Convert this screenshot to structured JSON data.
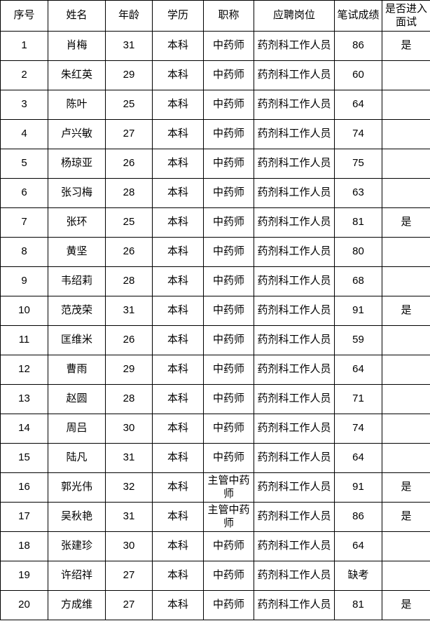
{
  "colors": {
    "border": "#000000",
    "text": "#000000",
    "background": "#ffffff"
  },
  "table": {
    "columns": [
      {
        "key": "no",
        "label": "序号"
      },
      {
        "key": "name",
        "label": "姓名"
      },
      {
        "key": "age",
        "label": "年龄"
      },
      {
        "key": "edu",
        "label": "学历"
      },
      {
        "key": "title",
        "label": "职称"
      },
      {
        "key": "position",
        "label": "应聘岗位"
      },
      {
        "key": "score",
        "label": "笔试成绩"
      },
      {
        "key": "interview",
        "label": "是否进入面试"
      }
    ],
    "rows": [
      [
        "1",
        "肖梅",
        "31",
        "本科",
        "中药师",
        "药剂科工作人员",
        "86",
        "是"
      ],
      [
        "2",
        "朱红英",
        "29",
        "本科",
        "中药师",
        "药剂科工作人员",
        "60",
        ""
      ],
      [
        "3",
        "陈叶",
        "25",
        "本科",
        "中药师",
        "药剂科工作人员",
        "64",
        ""
      ],
      [
        "4",
        "卢兴敏",
        "27",
        "本科",
        "中药师",
        "药剂科工作人员",
        "74",
        ""
      ],
      [
        "5",
        "杨琼亚",
        "26",
        "本科",
        "中药师",
        "药剂科工作人员",
        "75",
        ""
      ],
      [
        "6",
        "张习梅",
        "28",
        "本科",
        "中药师",
        "药剂科工作人员",
        "63",
        ""
      ],
      [
        "7",
        "张环",
        "25",
        "本科",
        "中药师",
        "药剂科工作人员",
        "81",
        "是"
      ],
      [
        "8",
        "黄坚",
        "26",
        "本科",
        "中药师",
        "药剂科工作人员",
        "80",
        ""
      ],
      [
        "9",
        "韦绍莉",
        "28",
        "本科",
        "中药师",
        "药剂科工作人员",
        "68",
        ""
      ],
      [
        "10",
        "范茂荣",
        "31",
        "本科",
        "中药师",
        "药剂科工作人员",
        "91",
        "是"
      ],
      [
        "11",
        "匡维米",
        "26",
        "本科",
        "中药师",
        "药剂科工作人员",
        "59",
        ""
      ],
      [
        "12",
        "曹雨",
        "29",
        "本科",
        "中药师",
        "药剂科工作人员",
        "64",
        ""
      ],
      [
        "13",
        "赵圆",
        "28",
        "本科",
        "中药师",
        "药剂科工作人员",
        "71",
        ""
      ],
      [
        "14",
        "周吕",
        "30",
        "本科",
        "中药师",
        "药剂科工作人员",
        "74",
        ""
      ],
      [
        "15",
        "陆凡",
        "31",
        "本科",
        "中药师",
        "药剂科工作人员",
        "64",
        ""
      ],
      [
        "16",
        "郭光伟",
        "32",
        "本科",
        "主管中药师",
        "药剂科工作人员",
        "91",
        "是"
      ],
      [
        "17",
        "吴秋艳",
        "31",
        "本科",
        "主管中药师",
        "药剂科工作人员",
        "86",
        "是"
      ],
      [
        "18",
        "张建珍",
        "30",
        "本科",
        "中药师",
        "药剂科工作人员",
        "64",
        ""
      ],
      [
        "19",
        "许绍祥",
        "27",
        "本科",
        "中药师",
        "药剂科工作人员",
        "缺考",
        ""
      ],
      [
        "20",
        "方成维",
        "27",
        "本科",
        "中药师",
        "药剂科工作人员",
        "81",
        ""
      ]
    ],
    "rows_note_last_interview": "是"
  }
}
